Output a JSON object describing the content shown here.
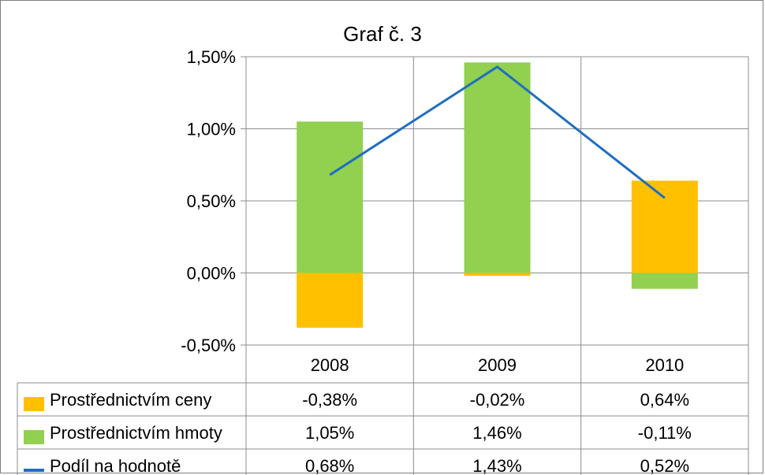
{
  "chart_data": {
    "type": "bar",
    "title": "Graf č. 3",
    "categories": [
      "2008",
      "2009",
      "2010"
    ],
    "yticks": [
      "-0,50%",
      "0,00%",
      "0,50%",
      "1,00%",
      "1,50%"
    ],
    "ylim": [
      -0.5,
      1.5
    ],
    "grid": true,
    "legend": "data-table",
    "series": [
      {
        "name": "Prostřednictvím ceny",
        "kind": "bar",
        "color": "#FFC000",
        "values": [
          -0.38,
          -0.02,
          0.64
        ],
        "labels": [
          "-0,38%",
          "-0,02%",
          "0,64%"
        ]
      },
      {
        "name": "Prostřednictvím hmoty",
        "kind": "bar",
        "color": "#92D050",
        "values": [
          1.05,
          1.46,
          -0.11
        ],
        "labels": [
          "1,05%",
          "1,46%",
          "-0,11%"
        ]
      },
      {
        "name": "Podíl na hodnotě",
        "kind": "line",
        "color": "#1F6FBF",
        "values": [
          0.68,
          1.43,
          0.52
        ],
        "labels": [
          "0,68%",
          "1,43%",
          "0,52%"
        ]
      }
    ]
  }
}
